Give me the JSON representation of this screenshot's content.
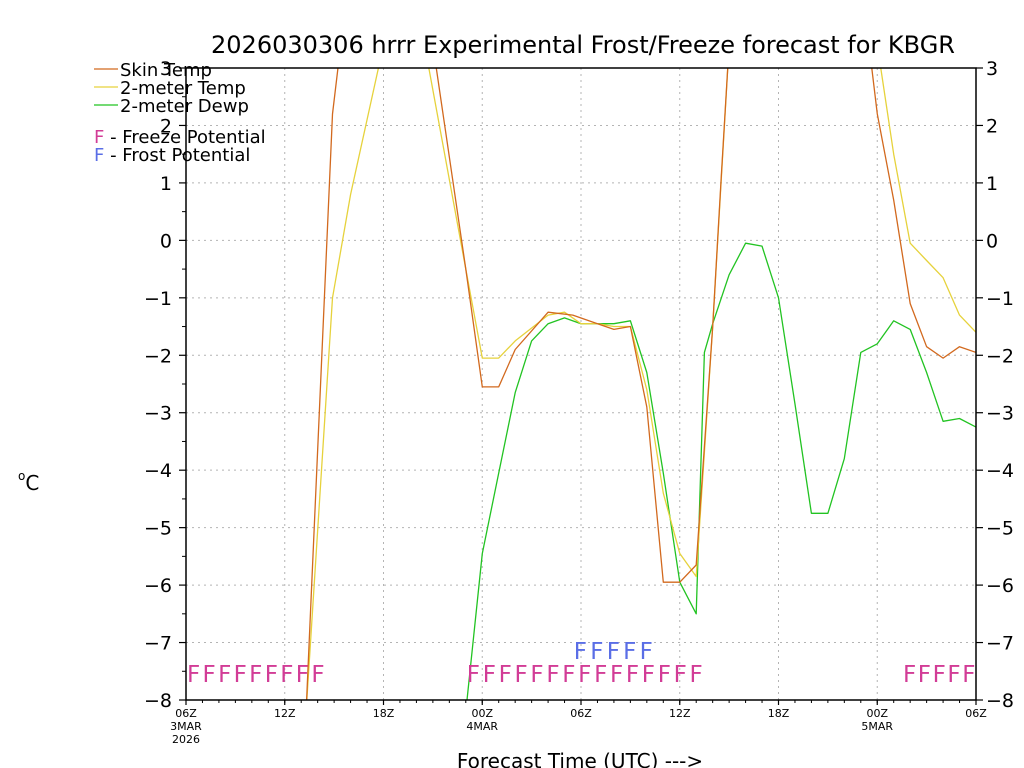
{
  "chart_data": {
    "type": "line",
    "title": "2026030306 hrrr Experimental Frost/Freeze forecast for KBGR",
    "ylabel_deg": "o",
    "ylabel": "C",
    "xlabel": "Forecast Time (UTC) --->",
    "ylim": [
      -8,
      3
    ],
    "y_ticks": [
      3,
      2,
      1,
      0,
      -1,
      -2,
      -3,
      -4,
      -5,
      -6,
      -7,
      -8
    ],
    "x_range_hours": [
      0,
      48
    ],
    "x_ticks": [
      {
        "hour": 0,
        "label": "06Z",
        "sub1": "3MAR",
        "sub2": "2026"
      },
      {
        "hour": 6,
        "label": "12Z",
        "sub1": "",
        "sub2": ""
      },
      {
        "hour": 12,
        "label": "18Z",
        "sub1": "",
        "sub2": ""
      },
      {
        "hour": 18,
        "label": "00Z",
        "sub1": "4MAR",
        "sub2": ""
      },
      {
        "hour": 24,
        "label": "06Z",
        "sub1": "",
        "sub2": ""
      },
      {
        "hour": 30,
        "label": "12Z",
        "sub1": "",
        "sub2": ""
      },
      {
        "hour": 36,
        "label": "18Z",
        "sub1": "",
        "sub2": ""
      },
      {
        "hour": 42,
        "label": "00Z",
        "sub1": "5MAR",
        "sub2": ""
      },
      {
        "hour": 48,
        "label": "06Z",
        "sub1": "",
        "sub2": ""
      }
    ],
    "series": [
      {
        "name": "Skin Temp",
        "color": "#d2691e",
        "points": [
          [
            7.3,
            -8.2
          ],
          [
            8.9,
            2.2
          ],
          [
            9.4,
            3.4
          ],
          [
            15.0,
            3.4
          ],
          [
            17.0,
            -0.5
          ],
          [
            18.0,
            -2.55
          ],
          [
            19.0,
            -2.55
          ],
          [
            20.0,
            -1.9
          ],
          [
            22.0,
            -1.25
          ],
          [
            23.5,
            -1.3
          ],
          [
            25.0,
            -1.45
          ],
          [
            26.0,
            -1.55
          ],
          [
            27.0,
            -1.5
          ],
          [
            28.0,
            -2.9
          ],
          [
            29.0,
            -5.95
          ],
          [
            30.0,
            -5.95
          ],
          [
            31.0,
            -5.65
          ],
          [
            32.0,
            -1.5
          ],
          [
            32.5,
            1.0
          ],
          [
            33.0,
            3.4
          ],
          [
            41.5,
            3.4
          ],
          [
            42.0,
            2.2
          ],
          [
            43.0,
            0.7
          ],
          [
            44.0,
            -1.1
          ],
          [
            45.0,
            -1.85
          ],
          [
            46.0,
            -2.05
          ],
          [
            47.0,
            -1.85
          ],
          [
            48.0,
            -1.95
          ]
        ]
      },
      {
        "name": "2-meter Temp",
        "color": "#e6d23c",
        "points": [
          [
            7.3,
            -8.2
          ],
          [
            8.9,
            -1.0
          ],
          [
            10.0,
            0.8
          ],
          [
            12.0,
            3.4
          ],
          [
            14.5,
            3.4
          ],
          [
            17.0,
            -0.5
          ],
          [
            18.0,
            -2.05
          ],
          [
            19.0,
            -2.05
          ],
          [
            20.0,
            -1.75
          ],
          [
            22.0,
            -1.3
          ],
          [
            23.0,
            -1.25
          ],
          [
            24.0,
            -1.45
          ],
          [
            25.0,
            -1.45
          ],
          [
            26.0,
            -1.5
          ],
          [
            27.0,
            -1.5
          ],
          [
            28.0,
            -2.6
          ],
          [
            29.0,
            -4.4
          ],
          [
            30.0,
            -5.45
          ],
          [
            31.0,
            -5.85
          ],
          [
            32.0,
            -1.5
          ],
          [
            33.0,
            3.4
          ],
          [
            42.0,
            3.4
          ],
          [
            43.0,
            1.5
          ],
          [
            44.0,
            -0.05
          ],
          [
            45.0,
            -0.35
          ],
          [
            46.0,
            -0.65
          ],
          [
            47.0,
            -1.3
          ],
          [
            48.0,
            -1.6
          ]
        ]
      },
      {
        "name": "2-meter Dewp",
        "color": "#22c322",
        "points": [
          [
            17.0,
            -8.2
          ],
          [
            18.0,
            -5.45
          ],
          [
            19.0,
            -4.05
          ],
          [
            20.0,
            -2.65
          ],
          [
            21.0,
            -1.75
          ],
          [
            22.0,
            -1.45
          ],
          [
            23.0,
            -1.35
          ],
          [
            24.0,
            -1.45
          ],
          [
            25.0,
            -1.45
          ],
          [
            26.0,
            -1.45
          ],
          [
            27.0,
            -1.4
          ],
          [
            28.0,
            -2.3
          ],
          [
            29.0,
            -4.05
          ],
          [
            30.0,
            -5.95
          ],
          [
            31.0,
            -6.5
          ],
          [
            31.5,
            -1.95
          ],
          [
            32.0,
            -1.45
          ],
          [
            33.0,
            -0.6
          ],
          [
            34.0,
            -0.05
          ],
          [
            35.0,
            -0.1
          ],
          [
            36.0,
            -1.0
          ],
          [
            37.0,
            -2.85
          ],
          [
            38.0,
            -4.75
          ],
          [
            39.0,
            -4.75
          ],
          [
            40.0,
            -3.8
          ],
          [
            41.0,
            -1.95
          ],
          [
            42.0,
            -1.8
          ],
          [
            43.0,
            -1.4
          ],
          [
            44.0,
            -1.55
          ],
          [
            45.0,
            -2.3
          ],
          [
            46.0,
            -3.15
          ],
          [
            47.0,
            -3.1
          ],
          [
            48.0,
            -3.25
          ]
        ]
      }
    ],
    "legend": {
      "placement": "top-left",
      "entries": [
        "Skin Temp",
        "2-meter Temp",
        "2-meter Dewp"
      ],
      "flags": [
        {
          "letter": "F",
          "text": " - Freeze Potential",
          "color": "#d23c96"
        },
        {
          "letter": "F",
          "text": " - Frost Potential",
          "color": "#5a6ee6"
        }
      ]
    },
    "freeze_runs": [
      {
        "text": "FFFFFFFFF",
        "start_hour": 0,
        "end_hour": 8.5,
        "color": "#d23c96"
      },
      {
        "text": "FFFFFFFFFFFFFFF",
        "start_hour": 17,
        "end_hour": 31.5,
        "color": "#d23c96"
      },
      {
        "text": "FFFFF",
        "start_hour": 43.5,
        "end_hour": 48,
        "color": "#d23c96"
      }
    ],
    "frost_runs": [
      {
        "text": "FFFFF",
        "start_hour": 23.5,
        "end_hour": 28.5,
        "color": "#5a6ee6"
      }
    ],
    "grid": true
  }
}
